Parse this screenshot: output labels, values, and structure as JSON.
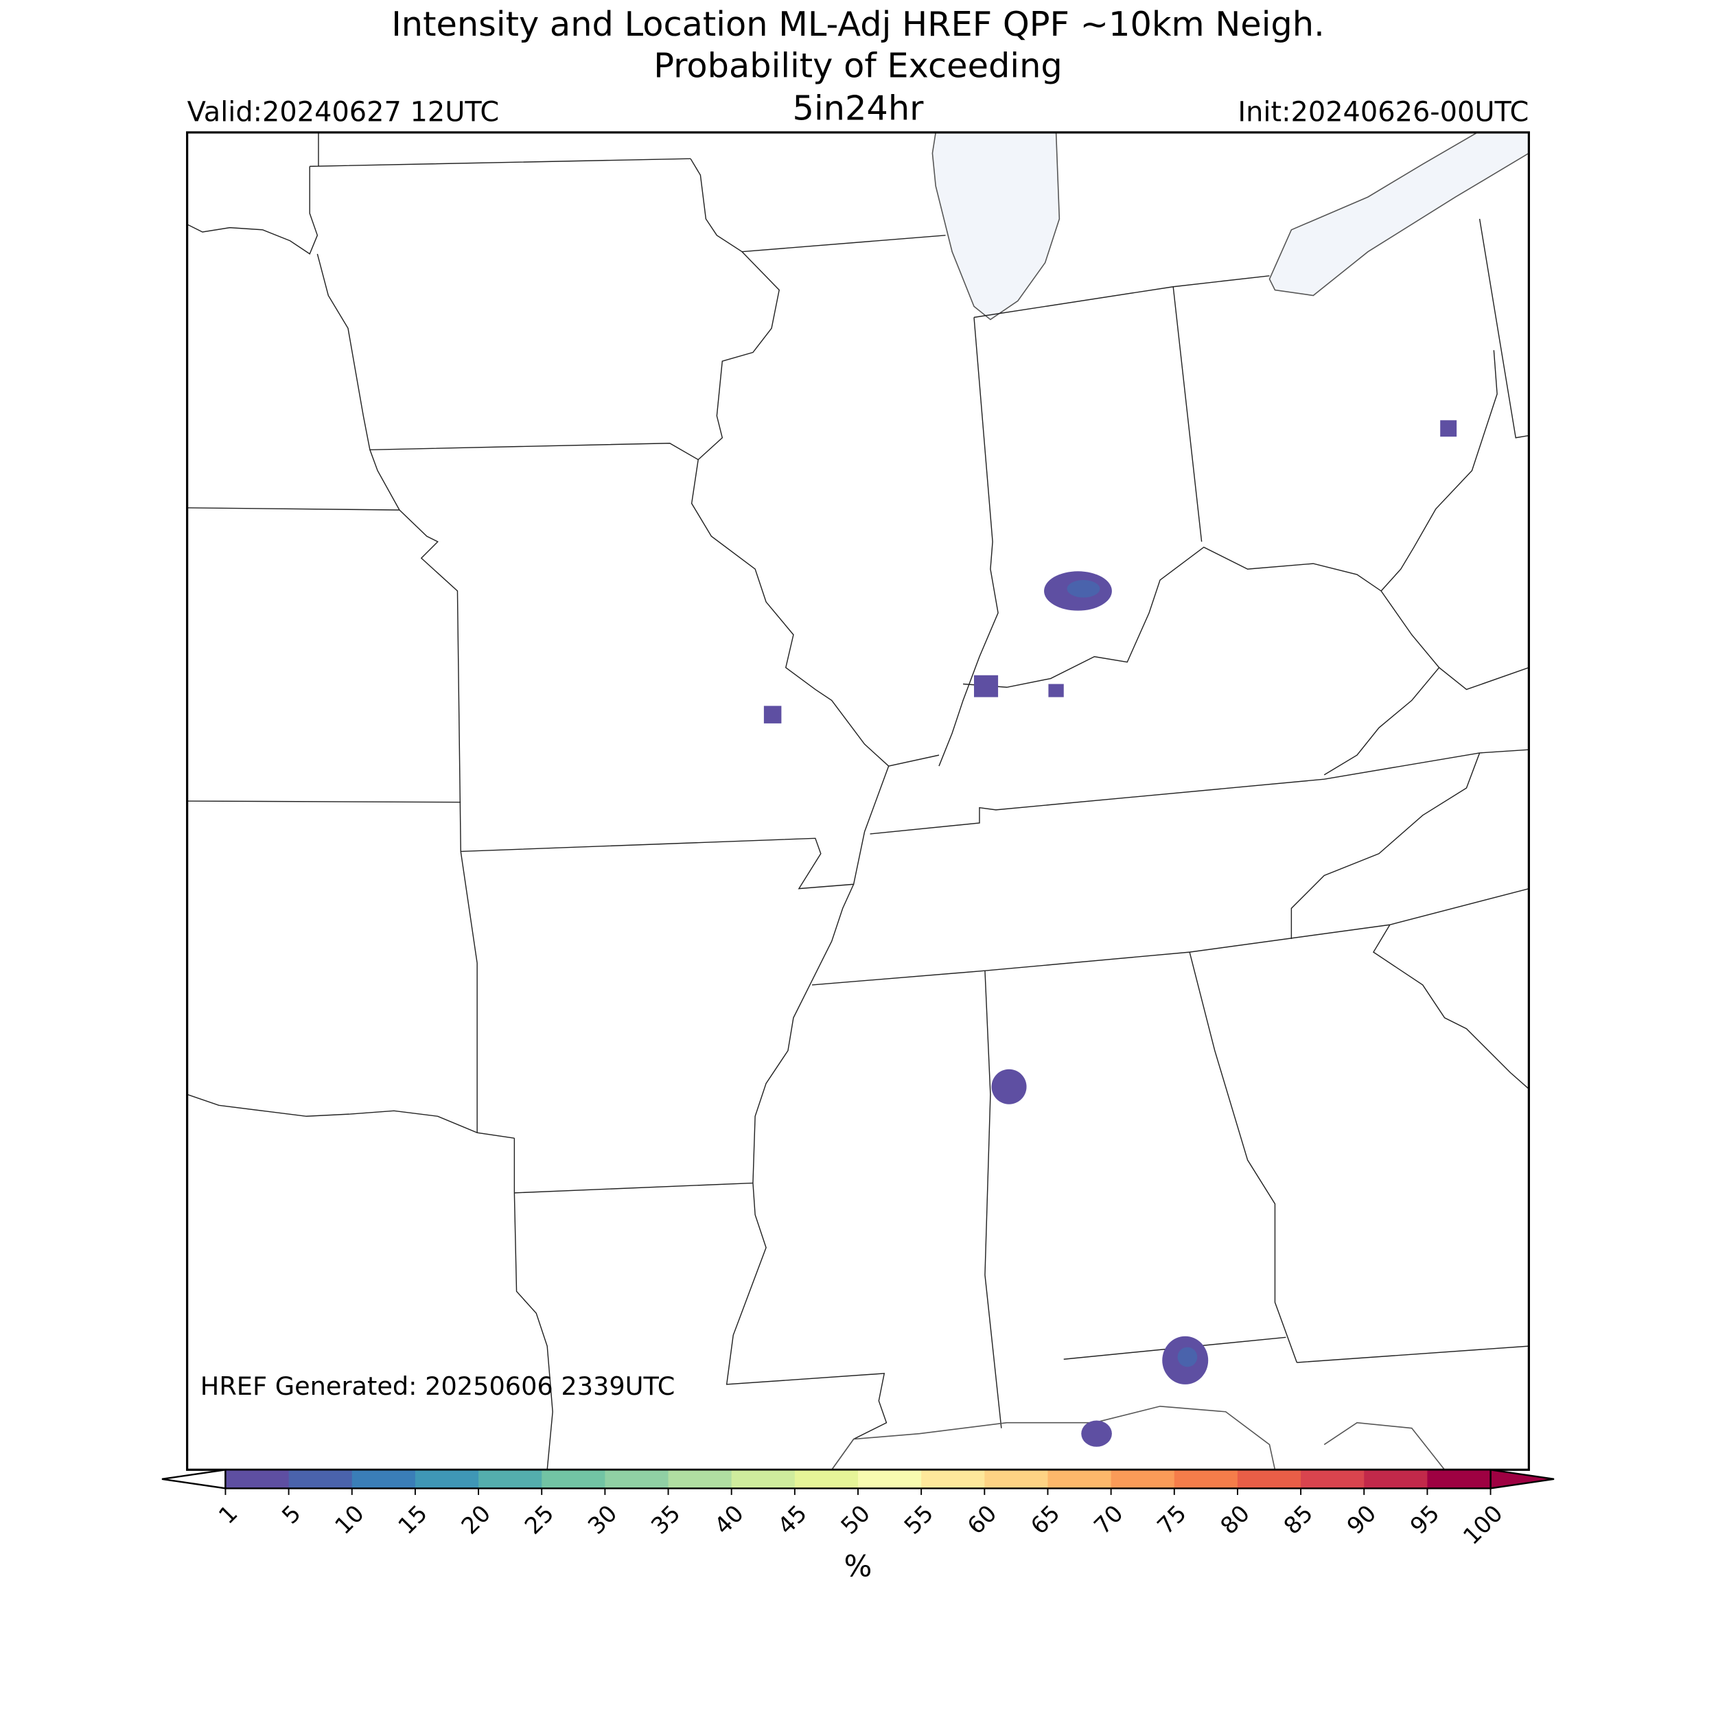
{
  "header": {
    "title_lines": [
      "Intensity and Location ML-Adj HREF QPF ~10km Neigh.",
      "Probability of Exceeding"
    ],
    "threshold": "5in24hr",
    "valid": "Valid:20240627 12UTC",
    "init": "Init:20240626-00UTC"
  },
  "map": {
    "footnote": "HREF Generated: 20250606 2339UTC"
  },
  "colorbar": {
    "ticks": [
      1,
      5,
      10,
      15,
      20,
      25,
      30,
      35,
      40,
      45,
      50,
      55,
      60,
      65,
      70,
      75,
      80,
      85,
      90,
      95,
      100
    ],
    "colors": [
      "#5e4fa2",
      "#4a63ac",
      "#3a7eb8",
      "#3f97b6",
      "#54aead",
      "#72c4a4",
      "#90d0a4",
      "#b0dea2",
      "#cfec9d",
      "#e6f598",
      "#f8fbb0",
      "#fee89b",
      "#fed384",
      "#fdb86b",
      "#fa9b58",
      "#f57d4a",
      "#e95e47",
      "#d9444e",
      "#c2294a",
      "#9e0142"
    ],
    "over_color": "#9e0142",
    "label": "%"
  }
}
